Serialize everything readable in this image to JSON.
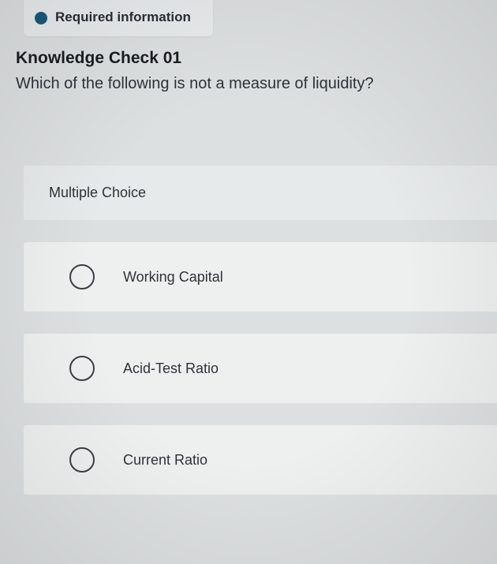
{
  "header": {
    "tab_label": "Required information",
    "dot_color": "#1a5a7a"
  },
  "question": {
    "title": "Knowledge Check 01",
    "prompt": "Which of the following is not a measure of liquidity?"
  },
  "mc": {
    "section_label": "Multiple Choice",
    "options": [
      {
        "label": "Working Capital"
      },
      {
        "label": "Acid-Test Ratio"
      },
      {
        "label": "Current Ratio"
      }
    ]
  },
  "styling": {
    "page_bg": "#dde0e0",
    "tab_bg": "#e8ebec",
    "mc_header_bg": "#e7eaea",
    "option_bg": "#eef0f0",
    "radio_border": "#3a3f46",
    "title_color": "#1a1d21",
    "text_color": "#2e3338",
    "title_fontsize": 21,
    "prompt_fontsize": 20,
    "section_fontsize": 18,
    "option_fontsize": 18,
    "radio_size": 32
  }
}
